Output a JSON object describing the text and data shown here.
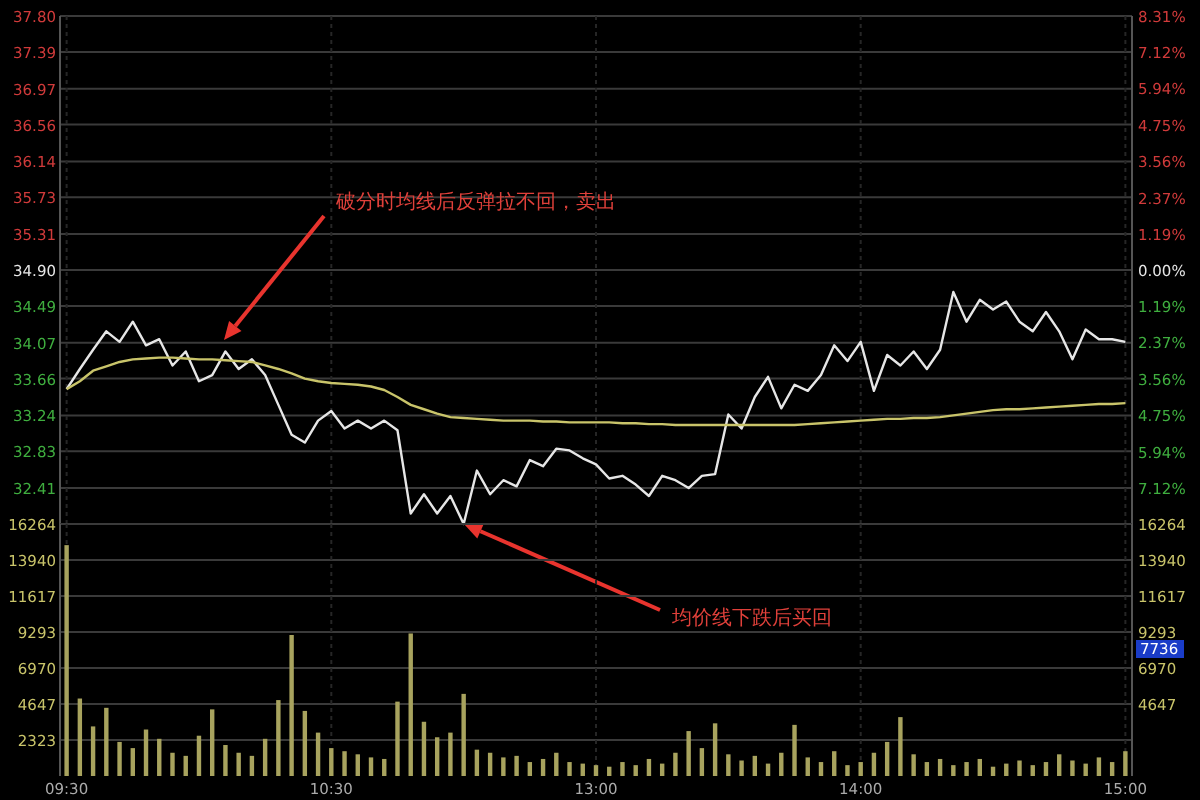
{
  "chart_data": [
    {
      "type": "line",
      "grid": true,
      "tick_labels": "y",
      "categories": [
        null,
        null,
        null,
        null,
        null,
        null,
        null,
        null,
        null,
        null,
        null,
        null,
        null,
        null,
        null,
        null,
        null,
        null,
        null,
        null,
        null,
        null,
        null,
        null,
        null,
        null,
        null,
        null,
        null,
        null,
        null,
        null,
        null,
        null,
        null,
        null,
        null,
        null,
        null,
        null,
        null,
        null,
        null,
        null,
        null,
        null,
        null,
        null,
        null,
        null,
        null,
        null,
        null,
        null,
        null,
        null,
        null,
        null,
        null,
        null,
        null,
        null,
        null,
        null,
        null,
        null,
        null,
        null,
        null,
        null,
        null,
        null,
        null,
        null,
        null,
        null,
        null,
        null,
        null,
        null,
        null
      ],
      "ylim": [
        32.0,
        37.8
      ],
      "yticks": [
        32.41,
        32.83,
        33.24,
        33.66,
        34.07,
        34.49,
        {
          "value": 34.9,
          "label": "34.90"
        },
        35.31,
        35.73,
        36.14,
        36.56,
        36.97,
        37.39,
        {
          "value": 37.8,
          "label": "37.80"
        }
      ],
      "y2lim": [
        -8.31,
        8.31
      ],
      "y2ticks": [
        {
          "value": -7.12,
          "label": "7.12%"
        },
        {
          "value": -5.94,
          "label": "5.94%"
        },
        {
          "value": -4.75,
          "label": "4.75%"
        },
        {
          "value": -3.56,
          "label": "3.56%"
        },
        {
          "value": -2.37,
          "label": "2.37%"
        },
        {
          "value": -1.19,
          "label": "1.19%"
        },
        {
          "value": 0,
          "label": "0.00%"
        },
        {
          "value": 1.19,
          "label": "1.19%"
        },
        {
          "value": 2.37,
          "label": "2.37%"
        },
        {
          "value": 3.56,
          "label": "3.56%"
        },
        {
          "value": 4.75,
          "label": "4.75%"
        },
        {
          "value": 5.94,
          "label": "5.94%"
        },
        {
          "value": 7.12,
          "label": "7.12%"
        },
        {
          "value": 8.31,
          "label": "8.31%"
        }
      ],
      "series": [
        {
          "color": "#e6e6e6",
          "values": [
            33.54,
            33.77,
            33.99,
            34.2,
            34.08,
            34.31,
            34.04,
            34.11,
            33.81,
            33.97,
            33.63,
            33.7,
            33.97,
            33.77,
            33.88,
            33.7,
            33.36,
            33.02,
            32.93,
            33.18,
            33.29,
            33.09,
            33.18,
            33.09,
            33.18,
            33.07,
            32.12,
            32.34,
            32.12,
            32.32,
            32.0,
            32.61,
            32.34,
            32.5,
            32.43,
            32.73,
            32.66,
            32.86,
            32.84,
            32.75,
            32.68,
            32.52,
            32.55,
            32.45,
            32.32,
            32.55,
            32.5,
            32.41,
            32.55,
            32.57,
            33.25,
            33.09,
            33.45,
            33.68,
            33.32,
            33.59,
            33.52,
            33.7,
            34.04,
            33.86,
            34.08,
            33.52,
            33.93,
            33.81,
            33.97,
            33.77,
            33.99,
            34.65,
            34.31,
            34.56,
            34.45,
            34.54,
            34.31,
            34.2,
            34.42,
            34.2,
            33.88,
            34.22,
            34.11,
            34.11,
            34.08
          ]
        },
        {
          "color": "#c9c46a",
          "values": [
            33.54,
            33.63,
            33.75,
            33.8,
            33.85,
            33.88,
            33.89,
            33.9,
            33.9,
            33.89,
            33.88,
            33.88,
            33.87,
            33.86,
            33.85,
            33.81,
            33.77,
            33.72,
            33.66,
            33.63,
            33.61,
            33.6,
            33.59,
            33.57,
            33.53,
            33.45,
            33.36,
            33.31,
            33.26,
            33.22,
            33.21,
            33.2,
            33.19,
            33.18,
            33.18,
            33.18,
            33.17,
            33.17,
            33.16,
            33.16,
            33.16,
            33.16,
            33.15,
            33.15,
            33.14,
            33.14,
            33.13,
            33.13,
            33.13,
            33.13,
            33.13,
            33.13,
            33.13,
            33.13,
            33.13,
            33.13,
            33.14,
            33.15,
            33.16,
            33.17,
            33.18,
            33.19,
            33.2,
            33.2,
            33.21,
            33.21,
            33.22,
            33.24,
            33.26,
            33.28,
            33.3,
            33.31,
            33.31,
            33.32,
            33.33,
            33.34,
            33.35,
            33.36,
            33.37,
            33.37,
            33.38
          ]
        }
      ],
      "annotations": [
        "破分时均线后反弹拉不回，卖出",
        "均价线下跌后买回"
      ]
    },
    {
      "type": "bar",
      "grid": true,
      "categories": [
        "09:30",
        null,
        null,
        null,
        null,
        null,
        null,
        null,
        null,
        null,
        null,
        null,
        null,
        null,
        null,
        null,
        null,
        null,
        null,
        null,
        "10:30",
        null,
        null,
        null,
        null,
        null,
        null,
        null,
        null,
        null,
        null,
        null,
        null,
        null,
        null,
        null,
        null,
        null,
        null,
        null,
        "13:00",
        null,
        null,
        null,
        null,
        null,
        null,
        null,
        null,
        null,
        null,
        null,
        null,
        null,
        null,
        null,
        null,
        null,
        null,
        null,
        "14:00",
        null,
        null,
        null,
        null,
        null,
        null,
        null,
        null,
        null,
        null,
        null,
        null,
        null,
        null,
        null,
        null,
        null,
        null,
        null,
        "15:00"
      ],
      "ylim": [
        0,
        16264
      ],
      "yticks": [
        2323,
        4647,
        6970,
        9293,
        11617,
        13940,
        16264
      ],
      "y2lim": [
        0,
        16264
      ],
      "y2ticks": [
        4647,
        6970,
        9293,
        11617,
        13940,
        16264
      ],
      "series": [
        {
          "color": "#a8a35e",
          "values": [
            14900,
            5000,
            3200,
            4400,
            2200,
            1800,
            3000,
            2400,
            1500,
            1300,
            2600,
            4300,
            2000,
            1500,
            1300,
            2400,
            4900,
            9100,
            4200,
            2800,
            1800,
            1600,
            1400,
            1200,
            1100,
            4800,
            9200,
            3500,
            2500,
            2800,
            5300,
            1700,
            1500,
            1200,
            1300,
            900,
            1100,
            1500,
            900,
            800,
            700,
            600,
            900,
            700,
            1100,
            800,
            1500,
            2900,
            1800,
            3400,
            1400,
            1000,
            1300,
            800,
            1500,
            3300,
            1200,
            900,
            1600,
            700,
            900,
            1500,
            2200,
            3800,
            1400,
            900,
            1100,
            700,
            900,
            1100,
            600,
            800,
            1000,
            700,
            900,
            1400,
            1000,
            800,
            1200,
            900,
            1600
          ]
        }
      ],
      "annotations": [
        "7736"
      ]
    }
  ]
}
